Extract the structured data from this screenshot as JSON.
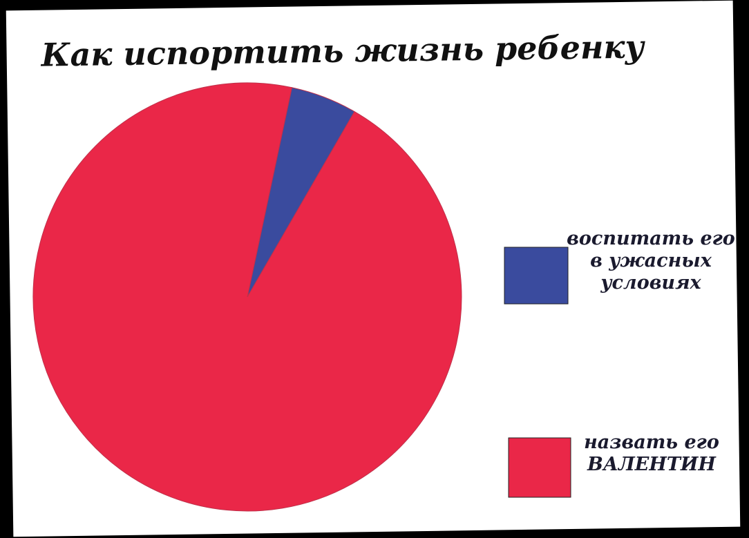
{
  "chart_data": {
    "type": "pie",
    "title": "Как испортить жизнь ребенку",
    "categories": [
      "воспитать его в ужасных условиях",
      "назвать его ВАЛЕНТИН"
    ],
    "values": [
      5,
      95
    ],
    "colors": [
      "#3a4b9e",
      "#ea2748"
    ],
    "legend": "right"
  }
}
